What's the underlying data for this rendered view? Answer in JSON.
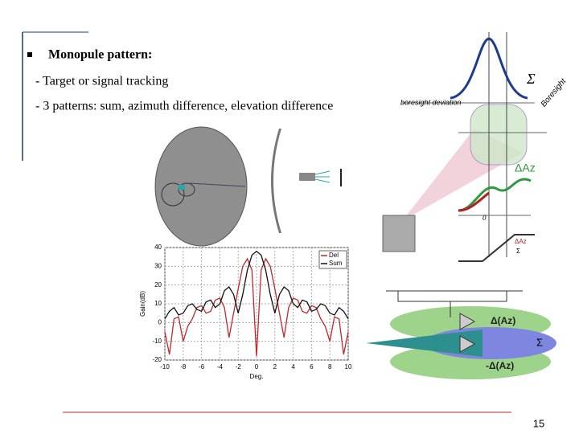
{
  "slide": {
    "heading": "Monopule pattern:",
    "items": [
      "- Target or signal tracking",
      "- 3 patterns: sum, azimuth difference, elevation difference"
    ],
    "page_number": "15"
  },
  "diagram": {
    "sum_label": "Σ",
    "deviation_label": "boresight deviation",
    "boresight_label": "Boresight",
    "az_label": "ΔAz",
    "zero_label": "0",
    "ratio_top": "ΔAz",
    "ratio_bottom": "Σ",
    "beam_az": "Δ(Az)",
    "beam_sum": "Σ",
    "beam_neg_az": "-Δ(Az)"
  },
  "chart_data": {
    "type": "line",
    "xlabel": "Deg.",
    "ylabel": "Gain(dB)",
    "x": [
      -10,
      -9.5,
      -9,
      -8.5,
      -8,
      -7.5,
      -7,
      -6.5,
      -6,
      -5.5,
      -5,
      -4.5,
      -4,
      -3.5,
      -3,
      -2.5,
      -2,
      -1.5,
      -1,
      -0.5,
      0,
      0.5,
      1,
      1.5,
      2,
      2.5,
      3,
      3.5,
      4,
      4.5,
      5,
      5.5,
      6,
      6.5,
      7,
      7.5,
      8,
      8.5,
      9,
      9.5,
      10
    ],
    "series": [
      {
        "name": "Del",
        "color": "#c0282d",
        "values": [
          -5,
          -17,
          2,
          3,
          -10,
          -2,
          2,
          8,
          9,
          5,
          6,
          12,
          13,
          8,
          -8,
          5,
          18,
          30,
          34,
          28,
          -18,
          28,
          34,
          30,
          18,
          5,
          -8,
          8,
          13,
          12,
          6,
          5,
          9,
          8,
          2,
          -2,
          -10,
          3,
          2,
          -17,
          -5
        ]
      },
      {
        "name": "Sum",
        "color": "#111111",
        "values": [
          2,
          6,
          8,
          4,
          5,
          9,
          10,
          7,
          6,
          11,
          12,
          8,
          10,
          17,
          19,
          15,
          5,
          15,
          28,
          36,
          38,
          36,
          28,
          15,
          5,
          15,
          19,
          17,
          10,
          8,
          12,
          11,
          6,
          7,
          10,
          9,
          5,
          4,
          8,
          6,
          2
        ]
      }
    ],
    "xlim": [
      -10,
      10
    ],
    "ylim": [
      -20,
      40
    ],
    "xticks": [
      -10,
      -8,
      -6,
      -4,
      -2,
      0,
      2,
      4,
      6,
      8,
      10
    ],
    "yticks": [
      -20,
      -10,
      0,
      10,
      20,
      30,
      40
    ],
    "grid": true,
    "legend": "upper right"
  }
}
